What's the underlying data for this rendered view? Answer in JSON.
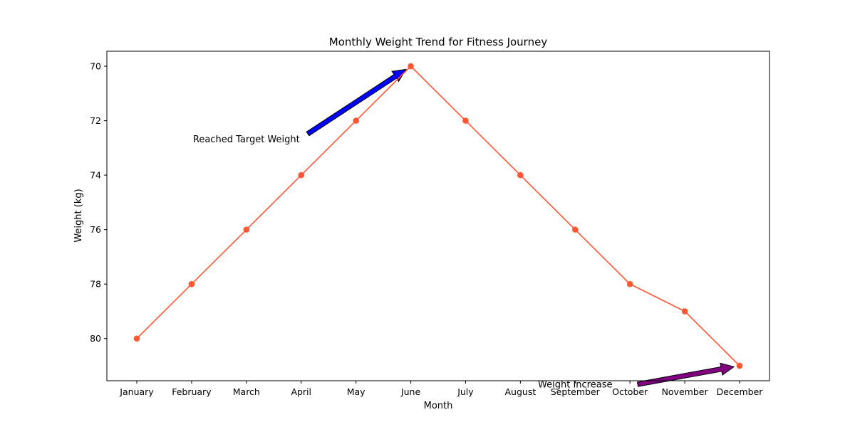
{
  "chart_data": {
    "type": "line",
    "title": "Monthly Weight Trend for Fitness Journey",
    "xlabel": "Month",
    "ylabel": "Weight (kg)",
    "categories": [
      "January",
      "February",
      "March",
      "April",
      "May",
      "June",
      "July",
      "August",
      "September",
      "October",
      "November",
      "December"
    ],
    "series": [
      {
        "values": [
          80,
          78,
          76,
          74,
          72,
          70,
          72,
          74,
          76,
          78,
          79,
          81
        ],
        "color": "#ff5733"
      }
    ],
    "y_inverted": true,
    "ylim": [
      69.45,
      81.55
    ],
    "yticks": [
      70,
      72,
      74,
      76,
      78,
      80
    ],
    "grid": false,
    "annotations": [
      {
        "text": "Reached Target Weight",
        "target_category": "June",
        "target_value": 70,
        "text_at": [
          "March",
          72.8
        ],
        "arrow_color": "#0000ff"
      },
      {
        "text": "Weight Increase",
        "target_category": "December",
        "target_value": 81,
        "text_at": [
          "September",
          81.8
        ],
        "arrow_color": "#800080"
      }
    ]
  }
}
